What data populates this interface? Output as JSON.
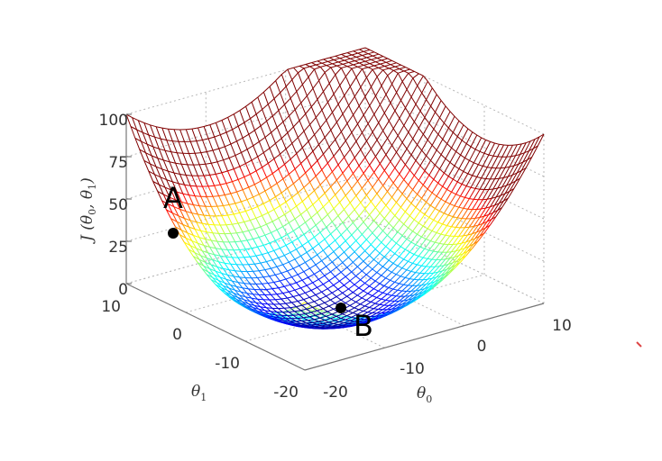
{
  "chart_data": {
    "type": "surface",
    "title": "",
    "z_axis": {
      "label_main": "J (θ",
      "label_sub0": "0",
      "label_sep": ", θ",
      "label_sub1": "1",
      "label_close": ")",
      "ticks": [
        "0",
        "25",
        "50",
        "75",
        "100"
      ],
      "range": [
        0,
        100
      ]
    },
    "theta0_axis": {
      "label_main": "θ",
      "label_sub": "0",
      "ticks": [
        "-20",
        "-10",
        "0",
        "10"
      ],
      "range": [
        -20,
        10
      ]
    },
    "theta1_axis": {
      "label_main": "θ",
      "label_sub": "1",
      "ticks": [
        "-20",
        "-10",
        "0",
        "10"
      ],
      "range": [
        -20,
        10
      ]
    },
    "surface": {
      "theta0_center": -10,
      "theta1_center": -10,
      "z_min": 0,
      "a": 0.2,
      "b": 0.2,
      "colormap": "jet"
    },
    "annotated_points": [
      {
        "label": "A"
      },
      {
        "label": "B"
      }
    ],
    "grid": true
  }
}
